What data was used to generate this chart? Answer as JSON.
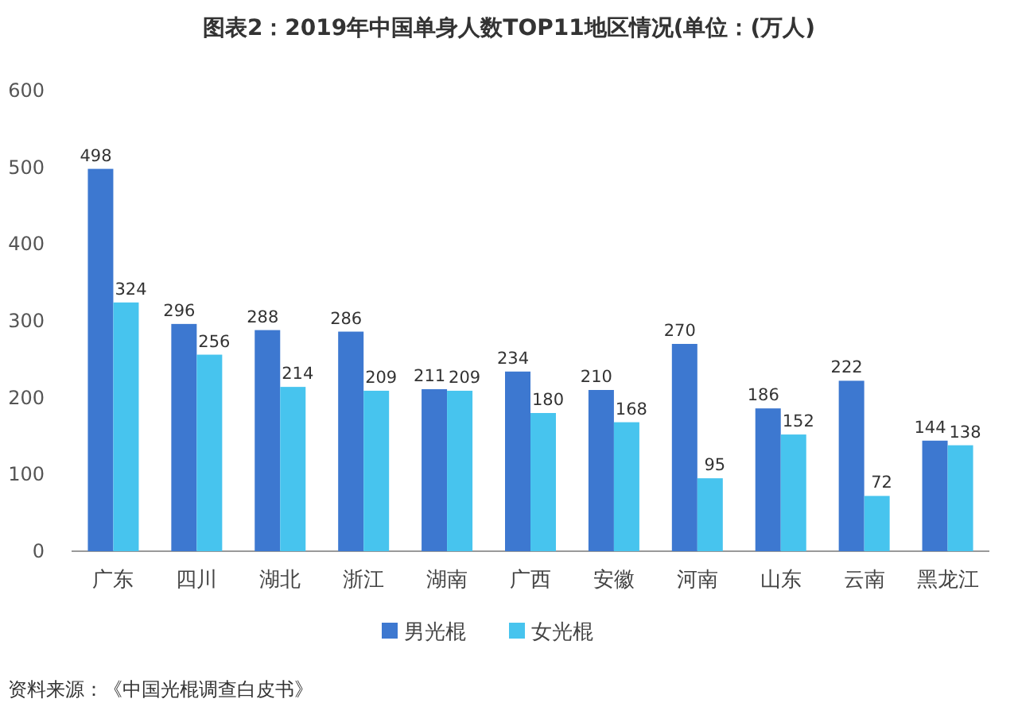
{
  "chart_data": {
    "type": "bar",
    "title": "图表2：2019年中国单身人数TOP11地区情况(单位：(万人)",
    "categories": [
      "广东",
      "四川",
      "湖北",
      "浙江",
      "湖南",
      "广西",
      "安徽",
      "河南",
      "山东",
      "云南",
      "黑龙江"
    ],
    "series": [
      {
        "name": "男光棍",
        "color": "#3d78d0",
        "values": [
          498,
          296,
          288,
          286,
          211,
          234,
          210,
          270,
          186,
          222,
          144
        ]
      },
      {
        "name": "女光棍",
        "color": "#47c4ee",
        "values": [
          324,
          256,
          214,
          209,
          209,
          180,
          168,
          95,
          152,
          72,
          138
        ]
      }
    ],
    "ylim": [
      0,
      600
    ],
    "yticks": [
      0,
      100,
      200,
      300,
      400,
      500,
      600
    ],
    "grid": false,
    "legend": "bottom",
    "data_labels": true,
    "annotations": [
      "资料来源：《中国光棍调查白皮书》"
    ]
  }
}
